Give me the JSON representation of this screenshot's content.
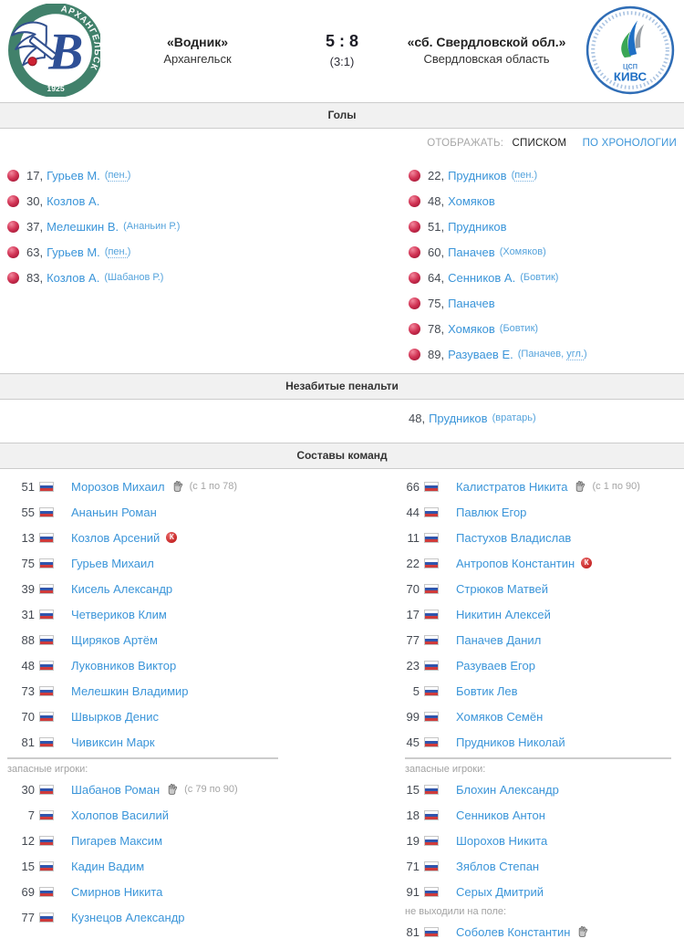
{
  "header": {
    "home_team": {
      "name": "«Водник»",
      "city": "Архангельск",
      "logo": {
        "arc_text": "АРХАНГЕЛЬСК",
        "letter": "В",
        "year": "1925"
      }
    },
    "score": {
      "main": "5 : 8",
      "halftime": "(3:1)"
    },
    "away_team": {
      "name": "«сб. Свердловской обл.»",
      "city": "Свердловская область",
      "logo": {
        "line1": "цсп",
        "line2": "КИВС"
      }
    }
  },
  "section_titles": {
    "goals": "Голы",
    "missed_penalties": "Незабитые пенальти",
    "lineups": "Составы команд"
  },
  "display_toggle": {
    "label": "ОТОБРАЖАТЬ:",
    "list_option": "СПИСКОМ",
    "chrono_option": "ПО ХРОНОЛОГИИ"
  },
  "colors": {
    "link_blue": "#3b95d9",
    "ball_red": "#c31f43",
    "captain_red": "#c42222",
    "bar_gray": "#f1f1f1"
  },
  "icons": {
    "captain_letter": "К"
  },
  "goals": {
    "home": [
      {
        "minute": "17",
        "player": "Гурьев М.",
        "note_pre": "(",
        "note_abbr": "пен.",
        "note_post": ")"
      },
      {
        "minute": "30",
        "player": "Козлов А."
      },
      {
        "minute": "37",
        "player": "Мелешкин В.",
        "note_pre": "(Ананьин Р.)"
      },
      {
        "minute": "63",
        "player": "Гурьев М.",
        "note_pre": "(",
        "note_abbr": "пен.",
        "note_post": ")"
      },
      {
        "minute": "83",
        "player": "Козлов А.",
        "note_pre": "(Шабанов Р.)"
      }
    ],
    "away": [
      {
        "minute": "22",
        "player": "Прудников",
        "note_pre": "(",
        "note_abbr": "пен.",
        "note_post": ")"
      },
      {
        "minute": "48",
        "player": "Хомяков"
      },
      {
        "minute": "51",
        "player": "Прудников"
      },
      {
        "minute": "60",
        "player": "Паначев",
        "note_pre": "(Хомяков)"
      },
      {
        "minute": "64",
        "player": "Сенников А.",
        "note_pre": "(Бовтик)"
      },
      {
        "minute": "75",
        "player": "Паначев"
      },
      {
        "minute": "78",
        "player": "Хомяков",
        "note_pre": "(Бовтик)"
      },
      {
        "minute": "89",
        "player": "Разуваев Е.",
        "note_pre": "(Паначев, ",
        "note_abbr": "угл.",
        "note_post": ")"
      }
    ]
  },
  "missed_penalties": {
    "away": [
      {
        "minute": "48",
        "player": "Прудников",
        "note_pre": "(вратарь)"
      }
    ]
  },
  "rosters": {
    "home": {
      "groups": [
        {
          "divider": false,
          "label": "",
          "players": [
            {
              "num": "51",
              "name": "Морозов Михаил",
              "gk": true,
              "minutes": "(с 1 по 78)"
            },
            {
              "num": "55",
              "name": "Ананьин Роман"
            },
            {
              "num": "13",
              "name": "Козлов Арсений",
              "captain": true
            },
            {
              "num": "75",
              "name": "Гурьев Михаил"
            },
            {
              "num": "39",
              "name": "Кисель Александр"
            },
            {
              "num": "31",
              "name": "Четвериков Клим"
            },
            {
              "num": "88",
              "name": "Щиряков Артём"
            },
            {
              "num": "48",
              "name": "Луковников Виктор"
            },
            {
              "num": "73",
              "name": "Мелешкин Владимир"
            },
            {
              "num": "70",
              "name": "Швырков Денис"
            },
            {
              "num": "81",
              "name": "Чивиксин Марк"
            }
          ]
        },
        {
          "divider": true,
          "label": "запасные игроки:",
          "players": [
            {
              "num": "30",
              "name": "Шабанов Роман",
              "gk": true,
              "minutes": "(с 79 по 90)"
            },
            {
              "num": "7",
              "name": "Холопов Василий"
            },
            {
              "num": "12",
              "name": "Пигарев Максим"
            },
            {
              "num": "15",
              "name": "Кадин Вадим"
            },
            {
              "num": "69",
              "name": "Смирнов Никита"
            },
            {
              "num": "77",
              "name": "Кузнецов Александр"
            }
          ]
        }
      ]
    },
    "away": {
      "groups": [
        {
          "divider": false,
          "label": "",
          "players": [
            {
              "num": "66",
              "name": "Калистратов Никита",
              "gk": true,
              "minutes": "(с 1 по 90)"
            },
            {
              "num": "44",
              "name": "Павлюк Егор"
            },
            {
              "num": "11",
              "name": "Пастухов Владислав"
            },
            {
              "num": "22",
              "name": "Антропов Константин",
              "captain": true
            },
            {
              "num": "70",
              "name": "Стрюков Матвей"
            },
            {
              "num": "17",
              "name": "Никитин Алексей"
            },
            {
              "num": "77",
              "name": "Паначев Данил"
            },
            {
              "num": "23",
              "name": "Разуваев Егор"
            },
            {
              "num": "5",
              "name": "Бовтик Лев"
            },
            {
              "num": "99",
              "name": "Хомяков Семён"
            },
            {
              "num": "45",
              "name": "Прудников Николай"
            }
          ]
        },
        {
          "divider": true,
          "label": "запасные игроки:",
          "players": [
            {
              "num": "15",
              "name": "Блохин Александр"
            },
            {
              "num": "18",
              "name": "Сенников Антон"
            },
            {
              "num": "19",
              "name": "Шорохов Никита"
            },
            {
              "num": "71",
              "name": "Зяблов Степан"
            },
            {
              "num": "91",
              "name": "Серых Дмитрий"
            }
          ]
        },
        {
          "divider": false,
          "label": "не выходили на поле:",
          "players": [
            {
              "num": "81",
              "name": "Соболев Константин",
              "gk": true
            }
          ]
        }
      ]
    }
  }
}
